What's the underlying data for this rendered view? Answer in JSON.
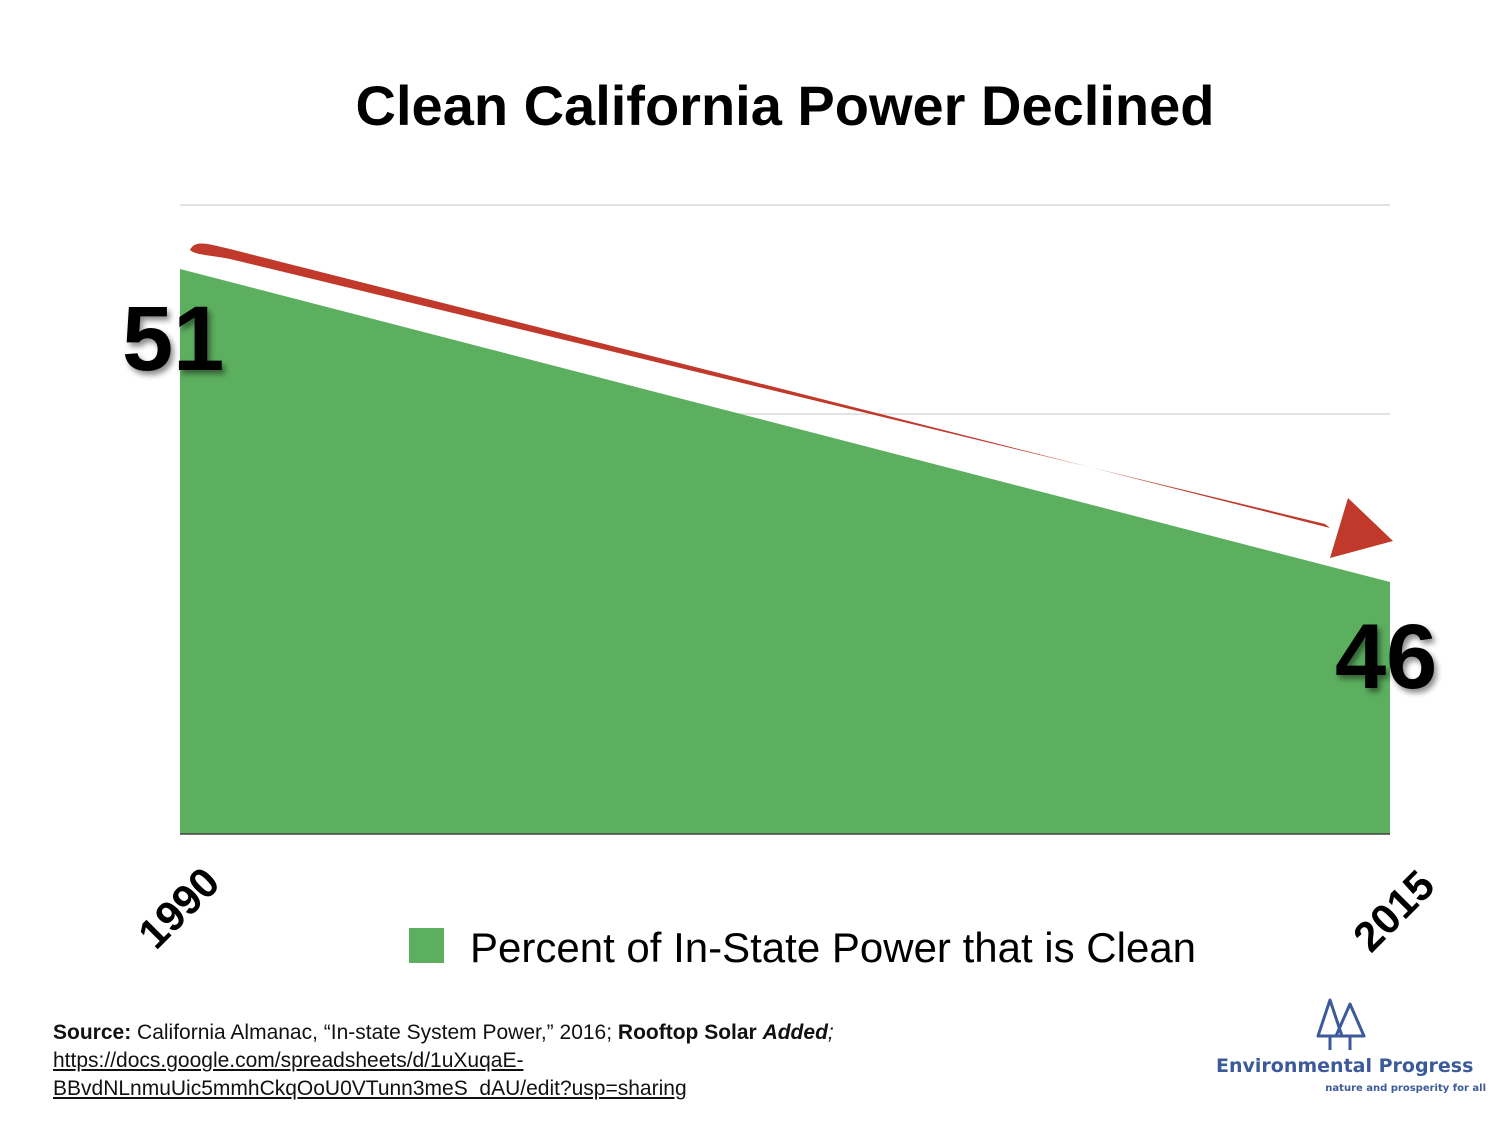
{
  "chart_data": {
    "type": "area",
    "title": "Clean California Power Declined",
    "x": [
      "1990",
      "2015"
    ],
    "series": [
      {
        "name": "Percent of In-State Power that is Clean",
        "values": [
          51,
          46
        ],
        "color": "#5caf5f"
      }
    ],
    "data_labels": [
      "51",
      "46"
    ],
    "arrow_color": "#c0392b",
    "grid": true,
    "legend": "bottom"
  },
  "source": {
    "label": "Source:",
    "text": " California Almanac, “In-state System Power,” 2016; ",
    "rooftop": "Rooftop Solar ",
    "added": "Added",
    "semicolon": ";",
    "url_line1": "https://docs.google.com/spreadsheets/d/1uXuqaE-",
    "url_line2": "BBvdNLnmuUic5mmhCkqOoU0VTunn3meS_dAU/edit?usp=sharing"
  },
  "logo": {
    "name": "Environmental Progress",
    "tagline": "nature and prosperity for all",
    "color": "#3c5a9a"
  }
}
